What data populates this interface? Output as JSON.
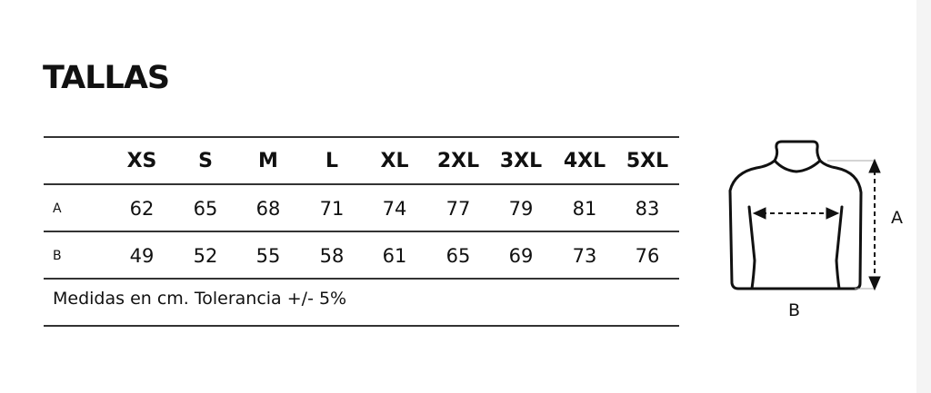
{
  "title": "TALLAS",
  "table": {
    "sizes": [
      "XS",
      "S",
      "M",
      "L",
      "XL",
      "2XL",
      "3XL",
      "4XL",
      "5XL"
    ],
    "rows": [
      {
        "label": "A",
        "values": [
          "62",
          "65",
          "68",
          "71",
          "74",
          "77",
          "79",
          "81",
          "83"
        ]
      },
      {
        "label": "B",
        "values": [
          "49",
          "52",
          "55",
          "58",
          "61",
          "65",
          "69",
          "73",
          "76"
        ]
      }
    ]
  },
  "note": "Medidas en cm. Tolerancia +/- 5%",
  "diagram": {
    "label_a": "A",
    "label_b": "B",
    "icon": "garment-torso-outline"
  }
}
